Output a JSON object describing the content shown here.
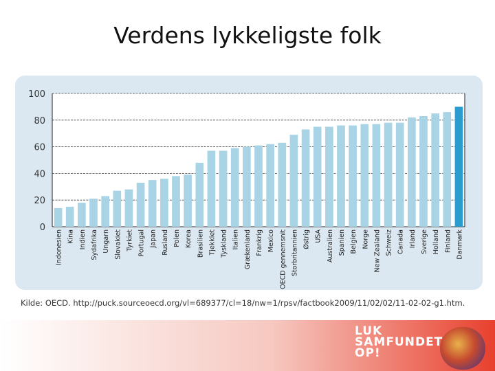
{
  "slide": {
    "title": "Verdens lykkeligste folk",
    "source": "Kilde: OECD. http://puck.sourceoecd.org/vl=689377/cl=18/nw=1/rpsv/factbook2009/11/02/02/11-02-02-g1.htm.",
    "logo": [
      "LUK",
      "SAMFUNDET",
      "OP!"
    ]
  },
  "colors": {
    "bar": "#a9d4e6",
    "highlight": "#2a9cd0",
    "panel": "#dbe8f1",
    "footer_start": "#ffffff",
    "footer_end": "#e8402e"
  },
  "chart_data": {
    "type": "bar",
    "title": "",
    "xlabel": "",
    "ylabel": "",
    "ylim": [
      0,
      100
    ],
    "yticks": [
      0,
      20,
      40,
      60,
      80,
      100
    ],
    "grid": true,
    "highlight": "Danmark",
    "categories": [
      "Indonesien",
      "Kina",
      "Indien",
      "Sydafrika",
      "Ungarn",
      "Slovakiet",
      "Tyrkiet",
      "Portugal",
      "Japan",
      "Rusland",
      "Polen",
      "Korea",
      "Brasilien",
      "Tjekkiet",
      "Tyskland",
      "Italien",
      "Grækenland",
      "Frankrig",
      "Mexico",
      "OECD gennemsnit",
      "Storbritannien",
      "Østrig",
      "USA",
      "Australien",
      "Spanien",
      "Belgien",
      "Norge",
      "New Zealand",
      "Schweiz",
      "Canada",
      "Irland",
      "Sverige",
      "Holland",
      "Finland",
      "Danmark"
    ],
    "values": [
      14,
      15,
      18,
      21,
      23,
      27,
      28,
      33,
      35,
      36,
      38,
      39,
      48,
      57,
      57,
      59,
      60,
      61,
      62,
      63,
      69,
      73,
      75,
      75,
      76,
      76,
      77,
      77,
      78,
      78,
      82,
      83,
      85,
      86,
      90
    ]
  }
}
